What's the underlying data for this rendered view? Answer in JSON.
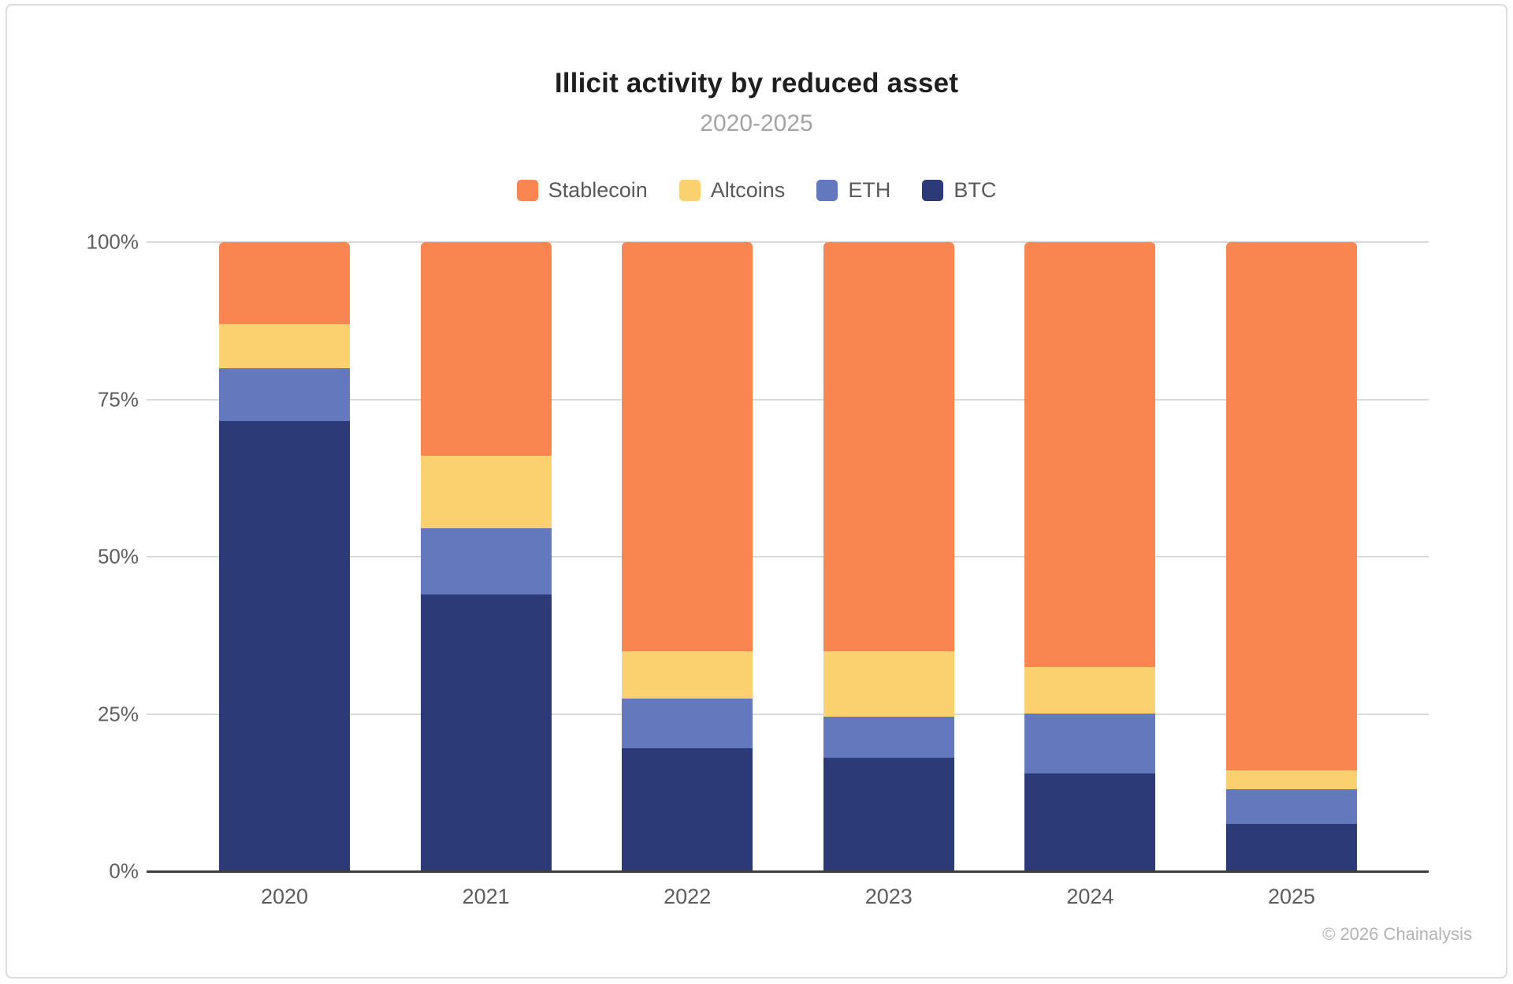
{
  "header": {
    "title": "Illicit activity by reduced asset",
    "subtitle": "2020-2025"
  },
  "legend": [
    {
      "label": "Stablecoin",
      "color": "#F98650"
    },
    {
      "label": "Altcoins",
      "color": "#FBD170"
    },
    {
      "label": "ETH",
      "color": "#6478BE"
    },
    {
      "label": "BTC",
      "color": "#2C3B77"
    }
  ],
  "chart_data": {
    "type": "bar",
    "stacked": true,
    "title": "Illicit activity by reduced asset",
    "subtitle": "2020-2025",
    "xlabel": "",
    "ylabel": "",
    "ylim": [
      0,
      100
    ],
    "grid": true,
    "legend_position": "top",
    "categories": [
      "2020",
      "2021",
      "2022",
      "2023",
      "2024",
      "2025"
    ],
    "y_ticks": [
      {
        "value": 0,
        "label": "0%"
      },
      {
        "value": 25,
        "label": "25%"
      },
      {
        "value": 50,
        "label": "50%"
      },
      {
        "value": 75,
        "label": "75%"
      },
      {
        "value": 100,
        "label": "100%"
      }
    ],
    "stack_order_bottom_to_top": [
      "BTC",
      "ETH",
      "Altcoins",
      "Stablecoin"
    ],
    "series": [
      {
        "name": "Stablecoin",
        "color": "#F98650",
        "values": [
          13,
          34,
          65,
          65,
          67.5,
          84
        ]
      },
      {
        "name": "Altcoins",
        "color": "#FBD170",
        "values": [
          7,
          11.5,
          7.5,
          10.5,
          7.5,
          3
        ]
      },
      {
        "name": "ETH",
        "color": "#6478BE",
        "values": [
          8.5,
          10.5,
          8,
          6.5,
          9.5,
          5.5
        ]
      },
      {
        "name": "BTC",
        "color": "#2C3B77",
        "values": [
          71.5,
          44,
          19.5,
          18,
          15.5,
          7.5
        ]
      }
    ]
  },
  "style": {
    "grid_color": "#D9D9D9",
    "axis_color": "#3F3F3F",
    "title_color": "#1F1F1F",
    "subtitle_color": "#A4A4A4"
  },
  "footer": {
    "attribution": "© 2026 Chainalysis"
  }
}
